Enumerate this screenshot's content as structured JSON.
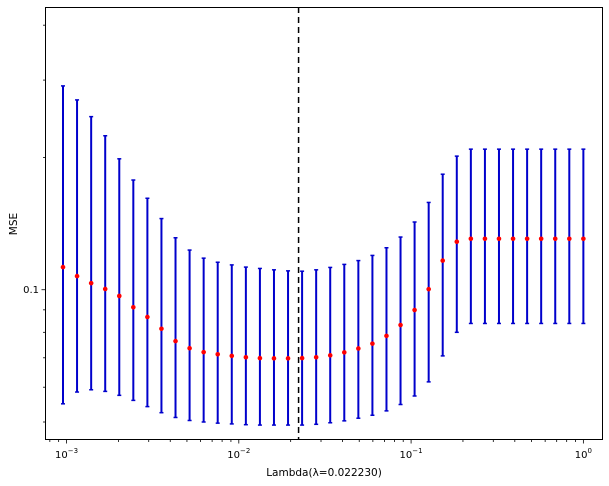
{
  "chart_data": {
    "type": "scatter",
    "title": "",
    "xlabel": "Lambda(λ=0.022230)",
    "ylabel": "MSE",
    "xscale": "log",
    "yscale": "log",
    "xlim": [
      0.00075,
      1.3
    ],
    "ylim": [
      0.0455,
      0.44
    ],
    "x_ticks": [
      {
        "value": 0.001,
        "base": "10",
        "exp": "−3"
      },
      {
        "value": 0.01,
        "base": "10",
        "exp": "−2"
      },
      {
        "value": 0.1,
        "base": "10",
        "exp": "−1"
      },
      {
        "value": 1,
        "base": "10",
        "exp": "0"
      }
    ],
    "y_ticks": [
      {
        "value": 0.1,
        "label": "0.1"
      }
    ],
    "selected_lambda": 0.02223,
    "grid": false,
    "legend": "none",
    "colors": {
      "points": "#ff0000",
      "errorbars": "#0000cc",
      "vline": "#000000"
    },
    "series": [
      {
        "x": [
          1.0,
          0.8286,
          0.6866,
          0.5689,
          0.4715,
          0.3907,
          0.3237,
          0.2683,
          0.2223,
          0.1842,
          0.1526,
          0.1265,
          0.1048,
          0.08685,
          0.07197,
          0.05964,
          0.04942,
          0.04095,
          0.03393,
          0.02812,
          0.0233,
          0.01931,
          0.016,
          0.01326,
          0.01099,
          0.009103,
          0.007543,
          0.006251,
          0.00518,
          0.004292,
          0.003556,
          0.002947,
          0.002442,
          0.002024,
          0.001677,
          0.00139,
          0.001151,
          0.000954
        ],
        "mse": [
          0.1306,
          0.1306,
          0.1306,
          0.1306,
          0.1306,
          0.1306,
          0.1306,
          0.1306,
          0.1306,
          0.1286,
          0.1165,
          0.1003,
          0.0899,
          0.0831,
          0.0785,
          0.0754,
          0.0735,
          0.072,
          0.0709,
          0.0702,
          0.0699,
          0.0698,
          0.0698,
          0.0699,
          0.0702,
          0.0707,
          0.0713,
          0.0721,
          0.0736,
          0.0764,
          0.0815,
          0.0867,
          0.0912,
          0.0968,
          0.1004,
          0.1035,
          0.1074,
          0.1126
        ],
        "lower": [
          0.0838,
          0.0838,
          0.0838,
          0.0838,
          0.0838,
          0.0838,
          0.0838,
          0.0838,
          0.0838,
          0.08,
          0.0707,
          0.0617,
          0.0573,
          0.0548,
          0.053,
          0.0518,
          0.051,
          0.0503,
          0.0498,
          0.0494,
          0.0492,
          0.0492,
          0.0492,
          0.0492,
          0.0493,
          0.0495,
          0.0497,
          0.05,
          0.0504,
          0.0512,
          0.0525,
          0.0542,
          0.056,
          0.0575,
          0.0587,
          0.0592,
          0.0585,
          0.055
        ],
        "upper": [
          0.2089,
          0.2089,
          0.2089,
          0.2089,
          0.2089,
          0.2089,
          0.2089,
          0.2089,
          0.2089,
          0.2014,
          0.1832,
          0.158,
          0.1426,
          0.1318,
          0.1246,
          0.1197,
          0.1165,
          0.1142,
          0.1124,
          0.111,
          0.1102,
          0.1104,
          0.111,
          0.1118,
          0.1126,
          0.1139,
          0.1155,
          0.118,
          0.1231,
          0.1313,
          0.1452,
          0.1615,
          0.1777,
          0.1986,
          0.2241,
          0.2477,
          0.2704,
          0.291
        ]
      }
    ]
  }
}
